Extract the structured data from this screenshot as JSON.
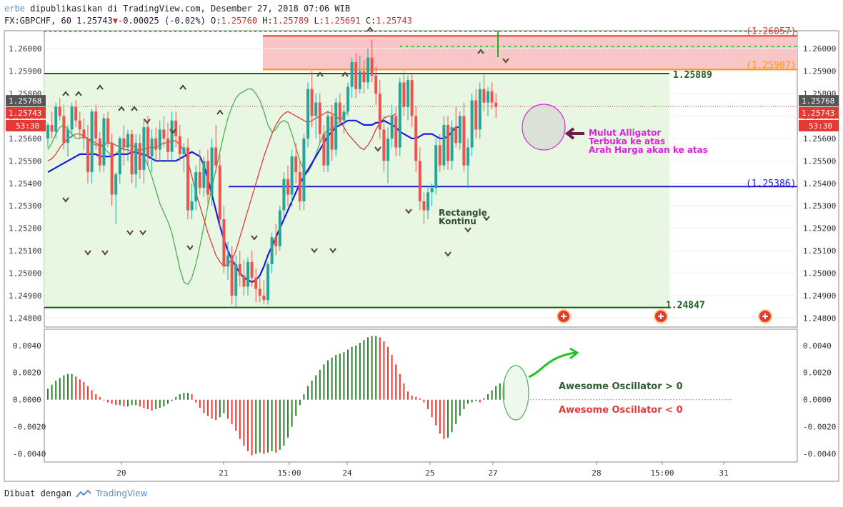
{
  "header": {
    "author": "erbe",
    "published": "dipublikasikan di TradingView.com, Desember 27, 2018 07:06 WIB",
    "symbol": "FX:GBPCHF, 60",
    "last": "1.25743",
    "change": "-0.00025 (-0.02%)",
    "ohlc": {
      "O": "1.25760",
      "H": "1.25789",
      "L": "1.25691",
      "C": "1.25743"
    }
  },
  "footer": {
    "made_with": "Dibuat dengan",
    "brand": "TradingView"
  },
  "colors": {
    "up": "#26a69a",
    "down": "#ef5350",
    "ao_up": "#2e7d32",
    "ao_down": "#e53935",
    "ma_blue": "#1a1adc",
    "ma_red": "#e53935",
    "ma_green": "#4caf50",
    "rect_fill": "#e8f7e1",
    "zone_fill": "#f8c6c6",
    "annotation": "#e020e0"
  },
  "chart_data": {
    "type": "candlestick",
    "price_axis": {
      "range": [
        1.2476,
        1.2608
      ],
      "ticks": [
        "1.26000",
        "1.25900",
        "1.25800",
        "1.25700",
        "1.25600",
        "1.25500",
        "1.25400",
        "1.25300",
        "1.25200",
        "1.25100",
        "1.25000",
        "1.24900",
        "1.24800"
      ]
    },
    "price_labels": {
      "high": "1.25768",
      "last": "1.25743",
      "countdown": "53:30"
    },
    "time_axis": {
      "labels": [
        "20",
        "21",
        "15:00",
        "24",
        "25",
        "27",
        "28",
        "15:00",
        "31"
      ]
    },
    "levels": [
      {
        "label": "(1.26057)",
        "value": 1.26057,
        "color": "#e53935"
      },
      {
        "label": "(1.25907)",
        "value": 1.25907,
        "color": "#ff9800"
      },
      {
        "label": "1.25889",
        "value": 1.25889,
        "color": "#1b5e20"
      },
      {
        "label": "(1.25386)",
        "value": 1.25386,
        "color": "#1a1adc"
      },
      {
        "label": "1.24847",
        "value": 1.24847,
        "color": "#1b5e20"
      }
    ],
    "annotations": {
      "alligator": [
        "Mulut Alligator",
        "Terbuka ke atas",
        "Arah Harga akan ke atas"
      ],
      "rectangle": [
        "Rectangle",
        "Kontinu"
      ],
      "ao_positive": "Awesome Oscillator > 0",
      "ao_negative": "Awesome Oscillator < 0"
    },
    "candles": [
      [
        1.256,
        1.2567,
        1.2556,
        1.2566
      ],
      [
        1.2566,
        1.2572,
        1.256,
        1.2563
      ],
      [
        1.2563,
        1.2576,
        1.256,
        1.2574
      ],
      [
        1.2574,
        1.2578,
        1.2568,
        1.257
      ],
      [
        1.257,
        1.2575,
        1.2555,
        1.2558
      ],
      [
        1.2558,
        1.2566,
        1.2552,
        1.2564
      ],
      [
        1.2564,
        1.2576,
        1.256,
        1.2574
      ],
      [
        1.2574,
        1.2577,
        1.2565,
        1.2568
      ],
      [
        1.2568,
        1.2572,
        1.256,
        1.2564
      ],
      [
        1.2564,
        1.2569,
        1.2555,
        1.256
      ],
      [
        1.256,
        1.2566,
        1.254,
        1.2545
      ],
      [
        1.2545,
        1.2573,
        1.254,
        1.2572
      ],
      [
        1.2572,
        1.2575,
        1.2555,
        1.256
      ],
      [
        1.256,
        1.2563,
        1.2545,
        1.2548
      ],
      [
        1.2548,
        1.2571,
        1.2545,
        1.2569
      ],
      [
        1.2569,
        1.2572,
        1.2556,
        1.2558
      ],
      [
        1.2558,
        1.2562,
        1.253,
        1.2535
      ],
      [
        1.2535,
        1.2545,
        1.2522,
        1.2544
      ],
      [
        1.2544,
        1.2561,
        1.254,
        1.256
      ],
      [
        1.256,
        1.2566,
        1.2548,
        1.2556
      ],
      [
        1.2556,
        1.2564,
        1.255,
        1.2562
      ],
      [
        1.2562,
        1.2564,
        1.254,
        1.2544
      ],
      [
        1.2544,
        1.2562,
        1.2538,
        1.2558
      ],
      [
        1.2558,
        1.2562,
        1.2542,
        1.2546
      ],
      [
        1.2546,
        1.2569,
        1.254,
        1.2565
      ],
      [
        1.2565,
        1.257,
        1.2548,
        1.2552
      ],
      [
        1.2552,
        1.2564,
        1.2545,
        1.256
      ],
      [
        1.256,
        1.2565,
        1.255,
        1.2555
      ],
      [
        1.2555,
        1.2568,
        1.255,
        1.2564
      ],
      [
        1.2564,
        1.257,
        1.2556,
        1.256
      ],
      [
        1.256,
        1.2567,
        1.255,
        1.2554
      ],
      [
        1.2554,
        1.2572,
        1.255,
        1.2568
      ],
      [
        1.2568,
        1.2572,
        1.2556,
        1.2561
      ],
      [
        1.2561,
        1.2566,
        1.255,
        1.2553
      ],
      [
        1.2553,
        1.2558,
        1.2545,
        1.2556
      ],
      [
        1.2556,
        1.256,
        1.2524,
        1.2528
      ],
      [
        1.2528,
        1.254,
        1.2524,
        1.2532
      ],
      [
        1.2532,
        1.2548,
        1.2528,
        1.2545
      ],
      [
        1.2545,
        1.2555,
        1.2535,
        1.2538
      ],
      [
        1.2538,
        1.2552,
        1.2534,
        1.255
      ],
      [
        1.255,
        1.2555,
        1.253,
        1.2535
      ],
      [
        1.2535,
        1.256,
        1.253,
        1.2556
      ],
      [
        1.2556,
        1.2566,
        1.2545,
        1.2548
      ],
      [
        1.2548,
        1.2553,
        1.252,
        1.2524
      ],
      [
        1.2524,
        1.253,
        1.25,
        1.2503
      ],
      [
        1.2503,
        1.2514,
        1.2497,
        1.2508
      ],
      [
        1.2508,
        1.2512,
        1.2486,
        1.249
      ],
      [
        1.249,
        1.2508,
        1.2485,
        1.2504
      ],
      [
        1.2504,
        1.251,
        1.2494,
        1.2499
      ],
      [
        1.2499,
        1.2506,
        1.249,
        1.2494
      ],
      [
        1.2494,
        1.2507,
        1.249,
        1.2505
      ],
      [
        1.2505,
        1.251,
        1.2494,
        1.2498
      ],
      [
        1.2498,
        1.2502,
        1.2487,
        1.2493
      ],
      [
        1.2493,
        1.2498,
        1.2487,
        1.249
      ],
      [
        1.249,
        1.2497,
        1.2486,
        1.2488
      ],
      [
        1.2488,
        1.2505,
        1.2486,
        1.2504
      ],
      [
        1.2504,
        1.2518,
        1.25,
        1.2516
      ],
      [
        1.2516,
        1.2522,
        1.2508,
        1.2512
      ],
      [
        1.2512,
        1.253,
        1.251,
        1.2528
      ],
      [
        1.2528,
        1.2545,
        1.2525,
        1.2542
      ],
      [
        1.2542,
        1.2548,
        1.253,
        1.2535
      ],
      [
        1.2535,
        1.2555,
        1.253,
        1.2552
      ],
      [
        1.2552,
        1.2558,
        1.254,
        1.2545
      ],
      [
        1.2545,
        1.255,
        1.2528,
        1.2532
      ],
      [
        1.2532,
        1.2562,
        1.2528,
        1.256
      ],
      [
        1.256,
        1.2585,
        1.2556,
        1.2582
      ],
      [
        1.2582,
        1.259,
        1.2565,
        1.257
      ],
      [
        1.257,
        1.258,
        1.256,
        1.2576
      ],
      [
        1.2576,
        1.258,
        1.2558,
        1.2562
      ],
      [
        1.2562,
        1.2566,
        1.2545,
        1.2548
      ],
      [
        1.2548,
        1.2572,
        1.2545,
        1.257
      ],
      [
        1.257,
        1.2575,
        1.255,
        1.2555
      ],
      [
        1.2555,
        1.2578,
        1.2552,
        1.2576
      ],
      [
        1.2576,
        1.258,
        1.2565,
        1.2568
      ],
      [
        1.2568,
        1.2575,
        1.2562,
        1.2572
      ],
      [
        1.2572,
        1.2585,
        1.257,
        1.2583
      ],
      [
        1.2583,
        1.2596,
        1.2578,
        1.2594
      ],
      [
        1.2594,
        1.2598,
        1.2578,
        1.2582
      ],
      [
        1.2582,
        1.2597,
        1.258,
        1.259
      ],
      [
        1.259,
        1.2595,
        1.258,
        1.2585
      ],
      [
        1.2585,
        1.26,
        1.2582,
        1.2596
      ],
      [
        1.2596,
        1.2604,
        1.2585,
        1.2588
      ],
      [
        1.2588,
        1.2592,
        1.2575,
        1.258
      ],
      [
        1.258,
        1.2586,
        1.256,
        1.2564
      ],
      [
        1.2564,
        1.257,
        1.2545,
        1.255
      ],
      [
        1.255,
        1.2565,
        1.254,
        1.256
      ],
      [
        1.256,
        1.2575,
        1.2556,
        1.257
      ],
      [
        1.257,
        1.2574,
        1.2552,
        1.2556
      ],
      [
        1.2556,
        1.2587,
        1.2552,
        1.2585
      ],
      [
        1.2585,
        1.259,
        1.257,
        1.2574
      ],
      [
        1.2574,
        1.2588,
        1.2568,
        1.2586
      ],
      [
        1.2586,
        1.2589,
        1.2565,
        1.257
      ],
      [
        1.257,
        1.2574,
        1.2545,
        1.255
      ],
      [
        1.255,
        1.2556,
        1.2528,
        1.2532
      ],
      [
        1.2532,
        1.2536,
        1.2522,
        1.2528
      ],
      [
        1.2528,
        1.2538,
        1.2524,
        1.2536
      ],
      [
        1.2536,
        1.254,
        1.253,
        1.2538
      ],
      [
        1.2538,
        1.256,
        1.2535,
        1.2557
      ],
      [
        1.2557,
        1.2562,
        1.2545,
        1.2548
      ],
      [
        1.2548,
        1.257,
        1.2546,
        1.2566
      ],
      [
        1.2566,
        1.257,
        1.2546,
        1.255
      ],
      [
        1.255,
        1.2568,
        1.2546,
        1.2565
      ],
      [
        1.2565,
        1.2574,
        1.2556,
        1.2558
      ],
      [
        1.2558,
        1.2572,
        1.2555,
        1.257
      ],
      [
        1.257,
        1.2576,
        1.2545,
        1.2548
      ],
      [
        1.2548,
        1.256,
        1.2538,
        1.2556
      ],
      [
        1.2556,
        1.258,
        1.2552,
        1.2577
      ],
      [
        1.2577,
        1.2582,
        1.256,
        1.2564
      ],
      [
        1.2564,
        1.2585,
        1.256,
        1.2582
      ],
      [
        1.2582,
        1.2589,
        1.2572,
        1.2576
      ],
      [
        1.2576,
        1.2583,
        1.257,
        1.2581
      ],
      [
        1.2581,
        1.2585,
        1.2573,
        1.2576
      ],
      [
        1.2576,
        1.258,
        1.2569,
        1.2574
      ]
    ],
    "ma_blue": [
      1.2545,
      1.2546,
      1.2547,
      1.2548,
      1.2549,
      1.255,
      1.2551,
      1.2552,
      1.2553,
      1.2553,
      1.2553,
      1.2553,
      1.2553,
      1.2552,
      1.2552,
      1.2552,
      1.2552,
      1.2553,
      1.2553,
      1.2553,
      1.2553,
      1.2554,
      1.2554,
      1.2553,
      1.2553,
      1.2552,
      1.2551,
      1.255,
      1.255,
      1.255,
      1.255,
      1.255,
      1.255,
      1.2551,
      1.2552,
      1.2553,
      1.2554,
      1.2553,
      1.2552,
      1.2548,
      1.2542,
      1.2535,
      1.2528,
      1.2521,
      1.2515,
      1.251,
      1.2506,
      1.2503,
      1.25,
      1.2498,
      1.2497,
      1.2496,
      1.2497,
      1.2499,
      1.2503,
      1.2508,
      1.2512,
      1.2516,
      1.252,
      1.2524,
      1.2528,
      1.2532,
      1.2536,
      1.254,
      1.2543,
      1.2546,
      1.2549,
      1.2552,
      1.2555,
      1.2558,
      1.2561,
      1.2563,
      1.2565,
      1.2566,
      1.2567,
      1.2568,
      1.2568,
      1.2568,
      1.2567,
      1.2566,
      1.2566,
      1.2566,
      1.2567,
      1.2567,
      1.2568,
      1.2567,
      1.2566,
      1.2565,
      1.2563,
      1.2562,
      1.2561,
      1.256,
      1.256,
      1.2561,
      1.2562,
      1.2562,
      1.2562,
      1.2561,
      1.256,
      1.256,
      1.2561,
      1.2563,
      1.2565,
      1.2565
    ],
    "ma_red": [
      1.255,
      1.2551,
      1.2553,
      1.2556,
      1.2558,
      1.256,
      1.2561,
      1.2562,
      1.2562,
      1.2561,
      1.256,
      1.2559,
      1.2558,
      1.2557,
      1.2557,
      1.2558,
      1.2558,
      1.2557,
      1.2556,
      1.2555,
      1.2555,
      1.2554,
      1.2554,
      1.2555,
      1.2555,
      1.2556,
      1.2556,
      1.2556,
      1.2557,
      1.2558,
      1.2558,
      1.2559,
      1.2559,
      1.2557,
      1.2555,
      1.255,
      1.2543,
      1.2536,
      1.253,
      1.2524,
      1.2518,
      1.2513,
      1.2508,
      1.2505,
      1.2503,
      1.2504,
      1.2506,
      1.251,
      1.2516,
      1.2522,
      1.2528,
      1.2534,
      1.254,
      1.2546,
      1.2552,
      1.2557,
      1.2562,
      1.2566,
      1.2569,
      1.2571,
      1.2572,
      1.2571,
      1.257,
      1.2569,
      1.2568,
      1.2567,
      1.2568,
      1.2569,
      1.257,
      1.2571,
      1.2572,
      1.2571,
      1.257,
      1.2568,
      1.2565,
      1.2562,
      1.256,
      1.2558,
      1.2556,
      1.2555,
      1.2557,
      1.256,
      1.2564,
      1.2567,
      1.2569,
      1.257,
      1.257,
      1.2571
    ],
    "ma_green": [
      1.2555,
      1.2558,
      1.2562,
      1.2565,
      1.2566,
      1.2564,
      1.2562,
      1.256,
      1.256,
      1.2561,
      1.256,
      1.2558,
      1.2557,
      1.2557,
      1.2556,
      1.2554,
      1.2552,
      1.2553,
      1.2555,
      1.2556,
      1.2557,
      1.2557,
      1.2556,
      1.2554,
      1.2552,
      1.2548,
      1.2543,
      1.2537,
      1.2531,
      1.2527,
      1.2523,
      1.2518,
      1.251,
      1.2502,
      1.2496,
      1.2495,
      1.2498,
      1.2504,
      1.2512,
      1.2521,
      1.253,
      1.2538,
      1.2546,
      1.2554,
      1.2562,
      1.2569,
      1.2574,
      1.2578,
      1.258,
      1.2581,
      1.2582,
      1.2582,
      1.258,
      1.2577,
      1.2572,
      1.2566,
      1.2563,
      1.2564,
      1.2567,
      1.2568,
      1.2567,
      1.2562,
      1.2556,
      1.255,
      1.2546,
      1.2545,
      1.2548,
      1.2553,
      1.2558,
      1.2562,
      1.2564,
      1.2564,
      1.2566,
      1.2568,
      1.257,
      1.2572
    ],
    "ao_axis": {
      "range": [
        -0.0046,
        0.0052
      ],
      "ticks": [
        "0.0040",
        "0.0020",
        "0.0000",
        "-0.0020",
        "-0.0040"
      ]
    },
    "ao": [
      0.0008,
      0.0011,
      0.0014,
      0.0016,
      0.0018,
      0.0019,
      0.0019,
      0.0017,
      0.0015,
      0.0013,
      0.001,
      0.0007,
      0.0004,
      0.0002,
      0.0,
      -0.0002,
      -0.0003,
      -0.0004,
      -0.0004,
      -0.0005,
      -0.0005,
      -0.0004,
      -0.0004,
      -0.0005,
      -0.0006,
      -0.0007,
      -0.0008,
      -0.0007,
      -0.0006,
      -0.0005,
      -0.0003,
      -0.0001,
      0.0002,
      0.0004,
      0.0005,
      0.0005,
      0.0004,
      -0.0002,
      -0.0006,
      -0.001,
      -0.0012,
      -0.0014,
      -0.0015,
      -0.0013,
      -0.001,
      -0.0014,
      -0.0018,
      -0.0023,
      -0.0029,
      -0.0034,
      -0.0038,
      -0.0041,
      -0.004,
      -0.0039,
      -0.004,
      -0.0039,
      -0.0038,
      -0.0039,
      -0.0037,
      -0.0034,
      -0.0028,
      -0.002,
      -0.0012,
      -0.0004,
      0.0004,
      0.001,
      0.0014,
      0.0018,
      0.0022,
      0.0026,
      0.0029,
      0.0031,
      0.0033,
      0.0034,
      0.0035,
      0.0037,
      0.0039,
      0.004,
      0.0042,
      0.0044,
      0.0046,
      0.0047,
      0.0047,
      0.0046,
      0.0043,
      0.0039,
      0.0033,
      0.0026,
      0.0019,
      0.0012,
      0.0006,
      0.0003,
      0.0002,
      0.0001,
      -0.0002,
      -0.0007,
      -0.0013,
      -0.0019,
      -0.0025,
      -0.0029,
      -0.0028,
      -0.0024,
      -0.0018,
      -0.0012,
      -0.0007,
      -0.0003,
      -0.0002,
      -0.0001,
      -0.0002,
      0.0001,
      0.0004,
      0.0007,
      0.001,
      0.0012,
      0.0013
    ]
  }
}
